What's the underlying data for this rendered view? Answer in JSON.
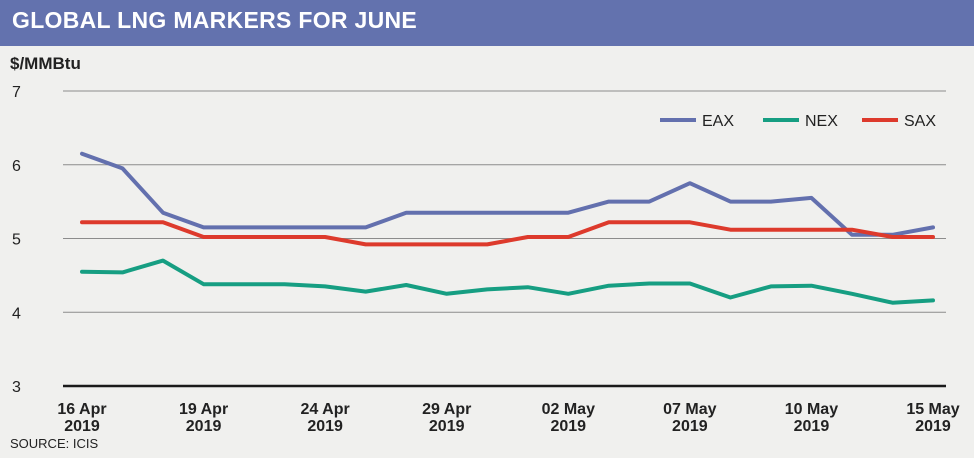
{
  "title": "GLOBAL LNG MARKERS FOR JUNE",
  "source": "SOURCE: ICIS",
  "chart_data": {
    "type": "line",
    "ylabel": "$/MMBtu",
    "ylim": [
      3,
      7
    ],
    "yticks": [
      3,
      4,
      5,
      6,
      7
    ],
    "grid": true,
    "legend_position": "top-right",
    "x": [
      "16 Apr 2019",
      "17 Apr 2019",
      "18 Apr 2019",
      "19 Apr 2019",
      "22 Apr 2019",
      "23 Apr 2019",
      "24 Apr 2019",
      "25 Apr 2019",
      "26 Apr 2019",
      "29 Apr 2019",
      "30 Apr 2019",
      "01 May 2019",
      "02 May 2019",
      "03 May 2019",
      "06 May 2019",
      "07 May 2019",
      "08 May 2019",
      "09 May 2019",
      "10 May 2019",
      "13 May 2019",
      "14 May 2019",
      "15 May 2019"
    ],
    "xtick_labels": [
      {
        "line1": "16 Apr",
        "line2": "2019",
        "x": "16 Apr 2019"
      },
      {
        "line1": "19 Apr",
        "line2": "2019",
        "x": "19 Apr 2019"
      },
      {
        "line1": "24 Apr",
        "line2": "2019",
        "x": "24 Apr 2019"
      },
      {
        "line1": "29 Apr",
        "line2": "2019",
        "x": "29 Apr 2019"
      },
      {
        "line1": "02 May",
        "line2": "2019",
        "x": "02 May 2019"
      },
      {
        "line1": "07 May",
        "line2": "2019",
        "x": "07 May 2019"
      },
      {
        "line1": "10 May",
        "line2": "2019",
        "x": "10 May 2019"
      },
      {
        "line1": "15 May",
        "line2": "2019",
        "x": "15 May 2019"
      }
    ],
    "series": [
      {
        "name": "EAX",
        "color": "#6370ae",
        "values": [
          6.15,
          5.95,
          5.35,
          5.15,
          5.15,
          5.15,
          5.15,
          5.15,
          5.35,
          5.35,
          5.35,
          5.35,
          5.35,
          5.5,
          5.5,
          5.75,
          5.5,
          5.5,
          5.55,
          5.05,
          5.05,
          5.15
        ]
      },
      {
        "name": "NEX",
        "color": "#169e82",
        "values": [
          4.55,
          4.54,
          4.7,
          4.38,
          4.38,
          4.38,
          4.35,
          4.28,
          4.37,
          4.25,
          4.31,
          4.34,
          4.25,
          4.36,
          4.39,
          4.39,
          4.2,
          4.35,
          4.36,
          4.25,
          4.13,
          4.16
        ]
      },
      {
        "name": "SAX",
        "color": "#dd3a2c",
        "values": [
          5.22,
          5.22,
          5.22,
          5.02,
          5.02,
          5.02,
          5.02,
          4.92,
          4.92,
          4.92,
          4.92,
          5.02,
          5.02,
          5.22,
          5.22,
          5.22,
          5.12,
          5.12,
          5.12,
          5.12,
          5.02,
          5.02
        ]
      }
    ]
  }
}
